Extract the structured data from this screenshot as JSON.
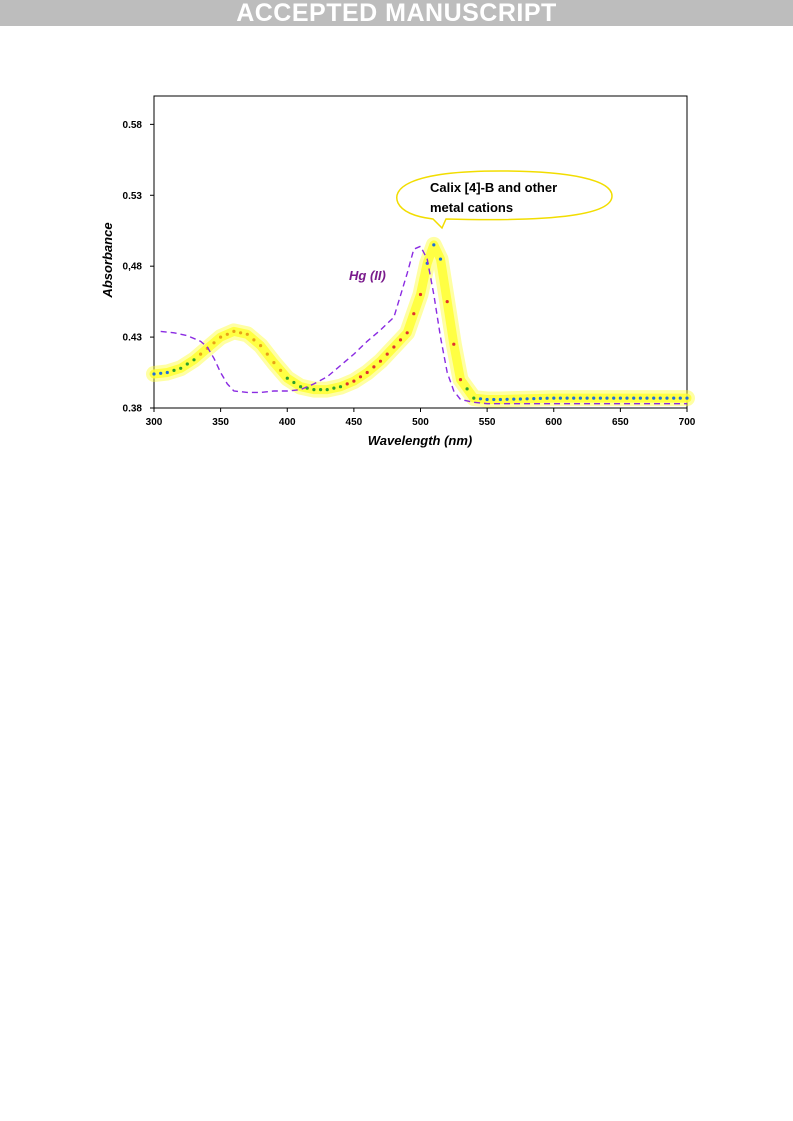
{
  "banner": {
    "text": "ACCEPTED MANUSCRIPT"
  },
  "chart_data": {
    "type": "line",
    "xlabel": "Wavelength (nm)",
    "ylabel": "Absorbance",
    "xlim": [
      300,
      700
    ],
    "ylim": [
      0.38,
      0.6
    ],
    "x_ticks": [
      "300",
      "350",
      "400",
      "450",
      "500",
      "550",
      "600",
      "650",
      "700"
    ],
    "y_ticks": [
      {
        "value": 0.38,
        "label": "0.38"
      },
      {
        "value": 0.43,
        "label": "0.43"
      },
      {
        "value": 0.48,
        "label": "0,48"
      },
      {
        "value": 0.53,
        "label": "0.53"
      },
      {
        "value": 0.58,
        "label": "0.58"
      }
    ],
    "grid": false,
    "series": [
      {
        "style": "dotted-highlighted",
        "x": [
          300,
          310,
          320,
          330,
          340,
          350,
          360,
          370,
          380,
          390,
          400,
          410,
          420,
          430,
          440,
          450,
          460,
          470,
          480,
          490,
          500,
          505,
          510,
          515,
          520,
          525,
          530,
          540,
          550,
          560,
          600,
          650,
          700
        ],
        "y": [
          0.404,
          0.405,
          0.408,
          0.414,
          0.422,
          0.43,
          0.434,
          0.432,
          0.424,
          0.412,
          0.401,
          0.395,
          0.393,
          0.393,
          0.395,
          0.399,
          0.405,
          0.413,
          0.423,
          0.433,
          0.46,
          0.482,
          0.495,
          0.485,
          0.455,
          0.425,
          0.4,
          0.387,
          0.386,
          0.386,
          0.387,
          0.387,
          0.387
        ],
        "colors": {
          "dots": "#1e6fd9",
          "dots_mid": "#2ca02c",
          "dots_peak": "#e0312e",
          "highlight": "#ffff33"
        }
      },
      {
        "name": "Hg (II)",
        "style": "dashed",
        "color": "#8a2be2",
        "x": [
          305,
          315,
          325,
          335,
          340,
          345,
          350,
          355,
          360,
          370,
          380,
          390,
          400,
          410,
          420,
          430,
          440,
          450,
          460,
          470,
          480,
          490,
          495,
          500,
          505,
          510,
          515,
          520,
          525,
          530,
          540,
          550,
          600,
          650,
          700
        ],
        "y": [
          0.434,
          0.433,
          0.431,
          0.427,
          0.423,
          0.415,
          0.405,
          0.397,
          0.392,
          0.391,
          0.391,
          0.392,
          0.392,
          0.393,
          0.397,
          0.402,
          0.41,
          0.418,
          0.427,
          0.435,
          0.444,
          0.475,
          0.492,
          0.494,
          0.485,
          0.46,
          0.43,
          0.405,
          0.392,
          0.386,
          0.384,
          0.383,
          0.383,
          0.383,
          0.383
        ]
      }
    ],
    "annotations": [
      {
        "text_lines": [
          "Calix [4]-B  and other",
          "metal cations"
        ],
        "target_x": 511,
        "shape": "callout-ellipse",
        "color": "#ffff00"
      },
      {
        "text": "Hg (II)",
        "target_x": 495,
        "color": "#7a1a8c"
      }
    ]
  }
}
